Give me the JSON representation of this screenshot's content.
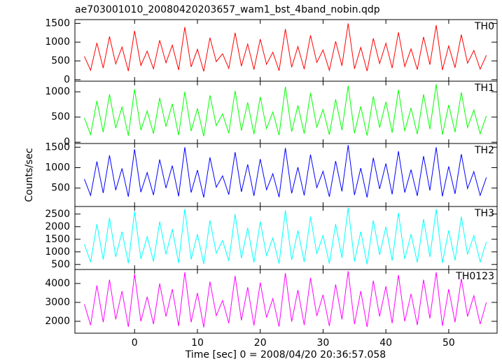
{
  "chart_data": [
    {
      "type": "line",
      "title": "ae703001010_20080420203657_wam1_bst_4band_nobin.qdp",
      "label": "TH0",
      "color": "#ff0000",
      "x": [
        -8,
        -7,
        -6,
        -5,
        -4,
        -3,
        -2,
        -1,
        0,
        1,
        2,
        3,
        4,
        5,
        6,
        7,
        8,
        9,
        10,
        11,
        12,
        13,
        14,
        15,
        16,
        17,
        18,
        19,
        20,
        21,
        22,
        23,
        24,
        25,
        26,
        27,
        28,
        29,
        30,
        31,
        32,
        33,
        34,
        35,
        36,
        37,
        38,
        39,
        40,
        41,
        42,
        43,
        44,
        45,
        46,
        47,
        48,
        49,
        50,
        51,
        52,
        53,
        54,
        55,
        56
      ],
      "values": [
        620,
        250,
        980,
        310,
        1150,
        420,
        870,
        230,
        1300,
        380,
        760,
        290,
        1050,
        450,
        920,
        260,
        1400,
        340,
        810,
        220,
        1120,
        480,
        690,
        300,
        1250,
        360,
        950,
        270,
        1080,
        410,
        730,
        240,
        1350,
        330,
        880,
        280,
        1180,
        460,
        790,
        250,
        1020,
        370,
        1500,
        290,
        860,
        230,
        1100,
        430,
        970,
        310,
        1260,
        350,
        820,
        270,
        1140,
        400,
        1450,
        260,
        900,
        320,
        1200,
        440,
        780,
        280,
        650
      ],
      "xlim": [
        -9.5,
        57.7
      ],
      "ylim": [
        -40,
        1600
      ],
      "yticks": [
        0,
        500,
        1000,
        1500
      ]
    },
    {
      "type": "line",
      "label": "TH1",
      "color": "#00ff00",
      "x": [
        -8,
        -7,
        -6,
        -5,
        -4,
        -3,
        -2,
        -1,
        0,
        1,
        2,
        3,
        4,
        5,
        6,
        7,
        8,
        9,
        10,
        11,
        12,
        13,
        14,
        15,
        16,
        17,
        18,
        19,
        20,
        21,
        22,
        23,
        24,
        25,
        26,
        27,
        28,
        29,
        30,
        31,
        32,
        33,
        34,
        35,
        36,
        37,
        38,
        39,
        40,
        41,
        42,
        43,
        44,
        45,
        46,
        47,
        48,
        49,
        50,
        51,
        52,
        53,
        54,
        55,
        56
      ],
      "values": [
        480,
        150,
        820,
        200,
        950,
        280,
        700,
        130,
        1050,
        240,
        620,
        170,
        880,
        310,
        760,
        140,
        1000,
        220,
        670,
        120,
        930,
        330,
        560,
        180,
        1020,
        230,
        790,
        160,
        900,
        270,
        600,
        140,
        1100,
        210,
        730,
        170,
        980,
        300,
        650,
        150,
        850,
        240,
        1120,
        180,
        710,
        130,
        910,
        290,
        800,
        190,
        1040,
        220,
        680,
        160,
        950,
        260,
        1150,
        150,
        740,
        200,
        990,
        290,
        640,
        170,
        520
      ],
      "xlim": [
        -9.5,
        57.7
      ],
      "ylim": [
        -25,
        1210
      ],
      "yticks": [
        0,
        500,
        1000
      ]
    },
    {
      "type": "line",
      "label": "TH2",
      "color": "#0000ff",
      "ylabel": "Counts/sec",
      "x": [
        -8,
        -7,
        -6,
        -5,
        -4,
        -3,
        -2,
        -1,
        0,
        1,
        2,
        3,
        4,
        5,
        6,
        7,
        8,
        9,
        10,
        11,
        12,
        13,
        14,
        15,
        16,
        17,
        18,
        19,
        20,
        21,
        22,
        23,
        24,
        25,
        26,
        27,
        28,
        29,
        30,
        31,
        32,
        33,
        34,
        35,
        36,
        37,
        38,
        39,
        40,
        41,
        42,
        43,
        44,
        45,
        46,
        47,
        48,
        49,
        50,
        51,
        52,
        53,
        54,
        55,
        56
      ],
      "values": [
        720,
        320,
        1150,
        380,
        1300,
        450,
        980,
        290,
        1450,
        400,
        880,
        330,
        1200,
        500,
        1050,
        300,
        1500,
        390,
        940,
        270,
        1250,
        520,
        800,
        340,
        1380,
        410,
        1080,
        310,
        1210,
        460,
        850,
        280,
        1480,
        370,
        1010,
        320,
        1320,
        510,
        910,
        290,
        1160,
        420,
        1550,
        330,
        990,
        270,
        1240,
        480,
        1100,
        350,
        1400,
        390,
        950,
        310,
        1280,
        440,
        1500,
        300,
        1030,
        360,
        1330,
        490,
        900,
        320,
        760
      ],
      "xlim": [
        -9.5,
        57.7
      ],
      "ylim": [
        50,
        1590
      ],
      "yticks": [
        500,
        1000,
        1500
      ]
    },
    {
      "type": "line",
      "label": "TH3",
      "color": "#00ffff",
      "x": [
        -8,
        -7,
        -6,
        -5,
        -4,
        -3,
        -2,
        -1,
        0,
        1,
        2,
        3,
        4,
        5,
        6,
        7,
        8,
        9,
        10,
        11,
        12,
        13,
        14,
        15,
        16,
        17,
        18,
        19,
        20,
        21,
        22,
        23,
        24,
        25,
        26,
        27,
        28,
        29,
        30,
        31,
        32,
        33,
        34,
        35,
        36,
        37,
        38,
        39,
        40,
        41,
        42,
        43,
        44,
        45,
        46,
        47,
        48,
        49,
        50,
        51,
        52,
        53,
        54,
        55,
        56
      ],
      "values": [
        1300,
        600,
        2100,
        700,
        2350,
        800,
        1800,
        550,
        2600,
        720,
        1600,
        620,
        2200,
        900,
        1900,
        560,
        2700,
        700,
        1700,
        520,
        2250,
        950,
        1450,
        640,
        2500,
        750,
        1950,
        580,
        2200,
        850,
        1550,
        530,
        2650,
        680,
        1850,
        600,
        2400,
        920,
        1650,
        540,
        2100,
        760,
        2750,
        620,
        1800,
        510,
        2250,
        880,
        2000,
        650,
        2550,
        720,
        1700,
        580,
        2300,
        800,
        2700,
        560,
        1850,
        660,
        2400,
        900,
        1650,
        600,
        1400
      ],
      "xlim": [
        -9.5,
        57.7
      ],
      "ylim": [
        300,
        2800
      ],
      "yticks": [
        500,
        1000,
        1500,
        2000,
        2500
      ]
    },
    {
      "type": "line",
      "label": "TH0123",
      "color": "#ff00ff",
      "xlabel": "Time [sec] 0 = 2008/04/20 20:36:57.058",
      "x": [
        -8,
        -7,
        -6,
        -5,
        -4,
        -3,
        -2,
        -1,
        0,
        1,
        2,
        3,
        4,
        5,
        6,
        7,
        8,
        9,
        10,
        11,
        12,
        13,
        14,
        15,
        16,
        17,
        18,
        19,
        20,
        21,
        22,
        23,
        24,
        25,
        26,
        27,
        28,
        29,
        30,
        31,
        32,
        33,
        34,
        35,
        36,
        37,
        38,
        39,
        40,
        41,
        42,
        43,
        44,
        45,
        46,
        47,
        48,
        49,
        50,
        51,
        52,
        53,
        54,
        55,
        56
      ],
      "values": [
        2900,
        1800,
        3900,
        1950,
        4200,
        2100,
        3600,
        1700,
        4500,
        2000,
        3300,
        1850,
        4000,
        2250,
        3700,
        1750,
        4600,
        1950,
        3500,
        1680,
        4100,
        2300,
        3100,
        1900,
        4400,
        2050,
        3800,
        1780,
        4050,
        2200,
        3200,
        1720,
        4550,
        1980,
        3650,
        1800,
        4300,
        2280,
        3400,
        1750,
        3950,
        2100,
        4650,
        1850,
        3600,
        1700,
        4150,
        2250,
        3850,
        1900,
        4450,
        2000,
        3450,
        1800,
        4200,
        2150,
        4600,
        1760,
        3700,
        1950,
        4250,
        2250,
        3350,
        1850,
        3000
      ],
      "xlim": [
        -9.5,
        57.7
      ],
      "ylim": [
        1370,
        4740
      ],
      "yticks": [
        2000,
        3000,
        4000
      ],
      "xticks": [
        0,
        10,
        20,
        30,
        40,
        50
      ]
    }
  ]
}
